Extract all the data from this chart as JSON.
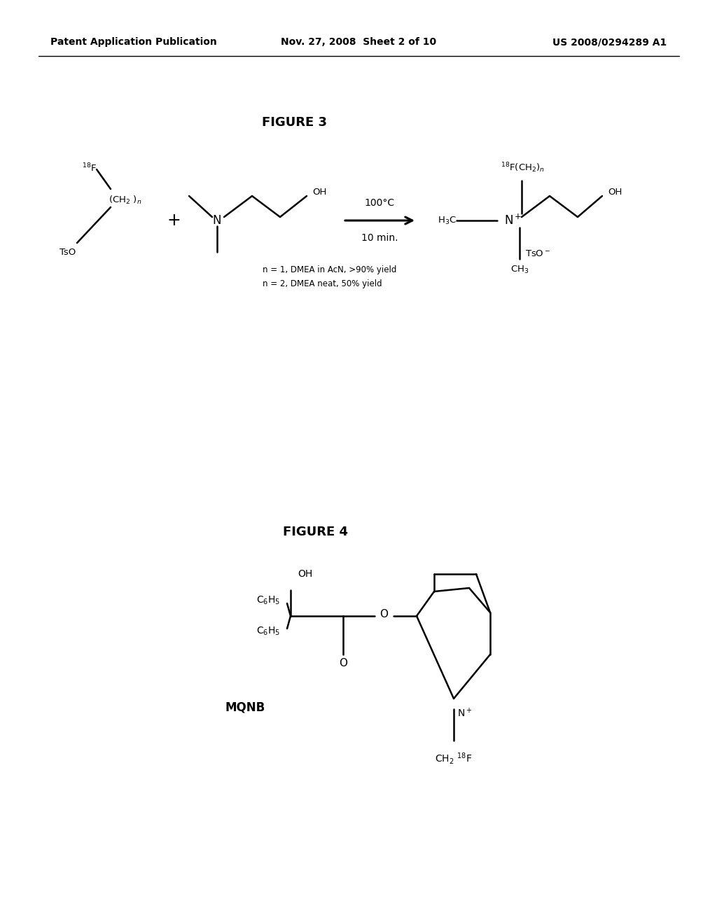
{
  "header_left": "Patent Application Publication",
  "header_middle": "Nov. 27, 2008  Sheet 2 of 10",
  "header_right": "US 2008/0294289 A1",
  "figure3_title": "FIGURE 3",
  "figure4_title": "FIGURE 4",
  "fig3_note_line1": "n = 1, DMEA in AcN, >90% yield",
  "fig3_note_line2": "n = 2, DMEA neat, 50% yield",
  "fig3_arrow_label_top": "100°C",
  "fig3_arrow_label_bottom": "10 min.",
  "mqnb_label": "MQNB",
  "background_color": "#ffffff",
  "line_color": "#000000",
  "text_color": "#000000"
}
